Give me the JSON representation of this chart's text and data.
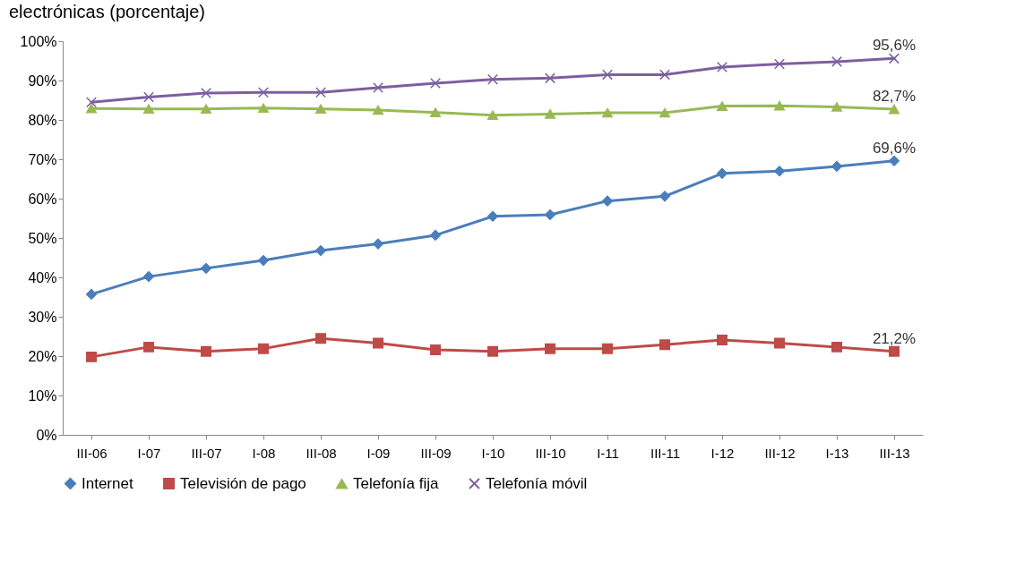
{
  "chart_data": {
    "type": "line",
    "title": "electrónicas (porcentaje)",
    "categories": [
      "III-06",
      "I-07",
      "III-07",
      "I-08",
      "III-08",
      "I-09",
      "III-09",
      "I-10",
      "III-10",
      "I-11",
      "III-11",
      "I-12",
      "III-12",
      "I-13",
      "III-13"
    ],
    "series": [
      {
        "name": "Internet",
        "color": "#4a7ebb",
        "marker": "diamond",
        "values": [
          35.7,
          40.2,
          42.3,
          44.3,
          46.8,
          48.5,
          50.7,
          55.5,
          55.9,
          59.4,
          60.6,
          66.4,
          67,
          68.2,
          69.6
        ],
        "value_labels": [
          null,
          null,
          null,
          null,
          null,
          null,
          null,
          null,
          null,
          null,
          null,
          null,
          null,
          null,
          "69,6%"
        ]
      },
      {
        "name": "Televisión de pago",
        "color": "#be4b48",
        "marker": "square",
        "values": [
          19.8,
          22.3,
          21.2,
          21.9,
          24.5,
          23.3,
          21.6,
          21.2,
          21.9,
          21.9,
          22.9,
          24.1,
          23.3,
          22.3,
          21.2
        ],
        "value_labels": [
          null,
          null,
          null,
          null,
          null,
          null,
          null,
          null,
          null,
          null,
          null,
          null,
          null,
          null,
          "21,2%"
        ]
      },
      {
        "name": "Telefonía fija",
        "color": "#98b954",
        "marker": "triangle",
        "values": [
          82.9,
          82.8,
          82.8,
          83,
          82.8,
          82.5,
          81.9,
          81.2,
          81.5,
          81.8,
          81.8,
          83.5,
          83.6,
          83.3,
          82.7
        ],
        "value_labels": [
          null,
          null,
          null,
          null,
          null,
          null,
          null,
          null,
          null,
          null,
          null,
          null,
          null,
          null,
          "82,7%"
        ]
      },
      {
        "name": "Telefonía móvil",
        "color": "#7d5fa0",
        "marker": "cross",
        "values": [
          84.5,
          85.8,
          86.8,
          87,
          87,
          88.2,
          89.3,
          90.3,
          90.6,
          91.5,
          91.5,
          93.4,
          94.2,
          94.8,
          95.6
        ],
        "value_labels": [
          null,
          null,
          null,
          null,
          null,
          null,
          null,
          null,
          null,
          null,
          null,
          null,
          null,
          null,
          "95,6%"
        ]
      }
    ],
    "ylim": [
      0,
      100
    ],
    "yticks": [
      {
        "value": 0,
        "label": "0%"
      },
      {
        "value": 10,
        "label": "10%"
      },
      {
        "value": 20,
        "label": "20%"
      },
      {
        "value": 30,
        "label": "30%"
      },
      {
        "value": 40,
        "label": "40%"
      },
      {
        "value": 50,
        "label": "50%"
      },
      {
        "value": 60,
        "label": "60%"
      },
      {
        "value": 70,
        "label": "70%"
      },
      {
        "value": 80,
        "label": "80%"
      },
      {
        "value": 90,
        "label": "90%"
      },
      {
        "value": 100,
        "label": "100%"
      }
    ],
    "grid": false,
    "legend": "bottom",
    "line_style": "solid"
  }
}
